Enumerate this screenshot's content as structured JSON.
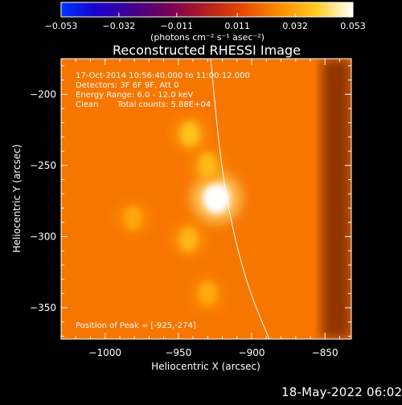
{
  "chart_data": {
    "type": "heatmap",
    "title": "Reconstructed RHESSI Image",
    "xlabel": "Heliocentric X (arcsec)",
    "ylabel": "Heliocentric Y (arcsec)",
    "xlim": [
      -1030,
      -832
    ],
    "ylim": [
      -372,
      -175
    ],
    "x_ticks": [
      -1000,
      -950,
      -900,
      -850
    ],
    "x_tick_labels": [
      "−1000",
      "−950",
      "−900",
      "−850"
    ],
    "y_ticks": [
      -200,
      -250,
      -300,
      -350
    ],
    "y_tick_labels": [
      "−200",
      "−250",
      "−300",
      "−350"
    ],
    "colorbar": {
      "range": [
        -0.053,
        0.053
      ],
      "ticks": [
        -0.053,
        -0.032,
        -0.011,
        0.011,
        0.032,
        0.053
      ],
      "tick_labels": [
        "−0.053",
        "−0.032",
        "−0.011",
        "0.011",
        "0.032",
        "0.053"
      ],
      "unit_label": "(photons cm⁻² s⁻¹ asec⁻²)",
      "colormap": [
        "#0033ff",
        "#1a00cc",
        "#440088",
        "#7a0055",
        "#b51f1f",
        "#e64a00",
        "#ff8c00",
        "#ffcc22",
        "#ffffff"
      ]
    },
    "background_value": 0.022,
    "sources": [
      {
        "x": -924,
        "y": -273,
        "value": 0.053
      },
      {
        "x": -942,
        "y": -228,
        "value": 0.038
      },
      {
        "x": -930,
        "y": -250,
        "value": 0.036
      },
      {
        "x": -943,
        "y": -302,
        "value": 0.035
      },
      {
        "x": -930,
        "y": -340,
        "value": 0.033
      },
      {
        "x": -981,
        "y": -287,
        "value": 0.032
      }
    ],
    "limb_curve": [
      [
        -928,
        -175
      ],
      [
        -921,
        -250
      ],
      [
        -912,
        -300
      ],
      [
        -901,
        -340
      ],
      [
        -888,
        -372
      ]
    ],
    "limb_color": "#ffffff",
    "annotations": {
      "time": "17-Oct-2014 10:56:40.000 to 11:00:12.000",
      "detectors": "Detectors: 3F 6F 9F, Att 0",
      "energy": "Energy Range: 6.0 - 12.0 keV",
      "method": "Clean",
      "counts": "Total counts: 5.88E+04",
      "peak": "Position of Peak = [-925,-274]"
    }
  },
  "footer": {
    "timestamp": "18-May-2022 06:02"
  }
}
